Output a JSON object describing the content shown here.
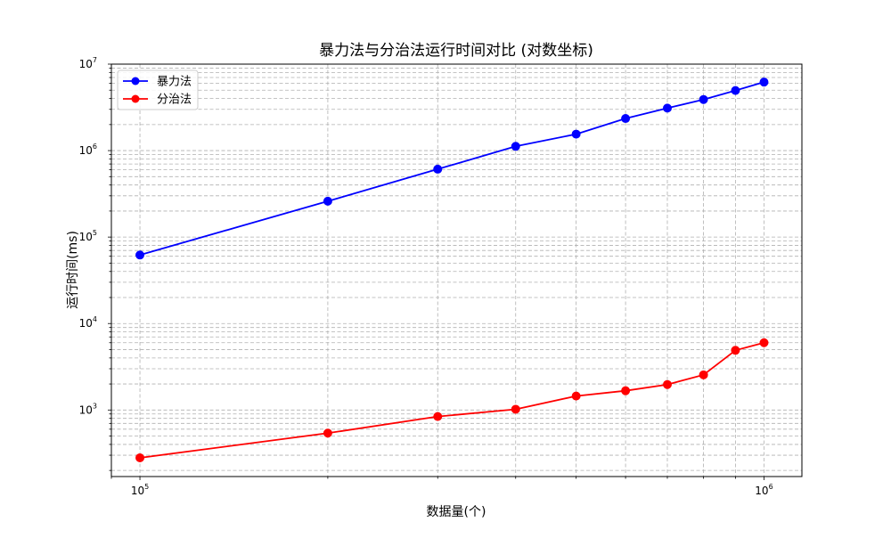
{
  "chart_data": {
    "type": "line",
    "title": "暴力法与分治法运行时间对比 (对数坐标)",
    "xlabel": "数据量(个)",
    "ylabel": "运行时间(ms)",
    "xscale": "log",
    "yscale": "log",
    "xlim": [
      90000,
      1150000
    ],
    "ylim": [
      170,
      10000000
    ],
    "x_ticks": [
      {
        "value": 100000,
        "base": "10",
        "exp": "5"
      },
      {
        "value": 1000000,
        "base": "10",
        "exp": "6"
      }
    ],
    "y_ticks": [
      {
        "value": 1000,
        "base": "10",
        "exp": "3"
      },
      {
        "value": 10000,
        "base": "10",
        "exp": "4"
      },
      {
        "value": 100000,
        "base": "10",
        "exp": "5"
      },
      {
        "value": 1000000,
        "base": "10",
        "exp": "6"
      },
      {
        "value": 10000000,
        "base": "10",
        "exp": "7"
      }
    ],
    "grid": true,
    "legend_position": "upper-left",
    "x": [
      100000,
      200000,
      300000,
      400000,
      500000,
      600000,
      700000,
      800000,
      900000,
      1000000
    ],
    "series": [
      {
        "name": "暴力法",
        "color": "#0000ff",
        "marker": "circle",
        "values": [
          62000,
          260000,
          610000,
          1120000,
          1550000,
          2350000,
          3100000,
          3900000,
          4950000,
          6200000
        ]
      },
      {
        "name": "分治法",
        "color": "#ff0000",
        "marker": "circle",
        "values": [
          280,
          540,
          840,
          1020,
          1450,
          1670,
          1970,
          2550,
          4900,
          6000
        ]
      }
    ]
  }
}
